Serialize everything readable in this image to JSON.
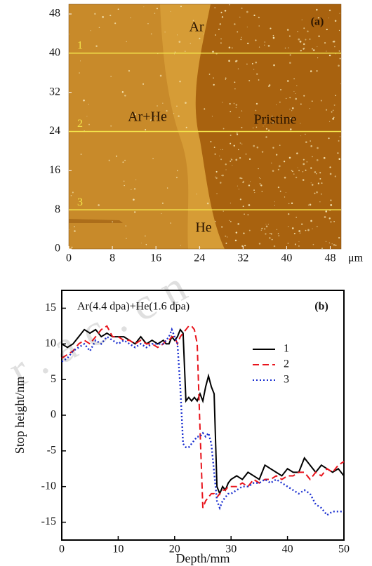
{
  "chart_data": [
    {
      "type": "image",
      "title": "(a)",
      "xlim": [
        0,
        50
      ],
      "ylim": [
        0,
        50
      ],
      "xticks": [
        0,
        8,
        16,
        24,
        32,
        40,
        48
      ],
      "yticks": [
        0,
        8,
        16,
        24,
        32,
        40,
        48
      ],
      "x_unit": "μm",
      "regions": [
        "Ar",
        "Ar+He",
        "Pristine",
        "He"
      ],
      "profile_lines": [
        {
          "label": "1",
          "y": 40
        },
        {
          "label": "2",
          "y": 24
        },
        {
          "label": "3",
          "y": 8
        }
      ],
      "line_color": "#f2e24a"
    },
    {
      "type": "line",
      "title": "(b)",
      "annotation": "Ar(4.4 dpa)+He(1.6 dpa)",
      "xlabel": "Depth/mm",
      "ylabel": "Stop height/nm",
      "xlim": [
        0,
        50
      ],
      "ylim": [
        -17.5,
        17.5
      ],
      "xticks": [
        0,
        10,
        20,
        30,
        40,
        50
      ],
      "yticks": [
        -15,
        -10,
        -5,
        0,
        5,
        10,
        15
      ],
      "x": [
        0,
        1,
        2,
        3,
        4,
        5,
        6,
        7,
        8,
        9,
        10,
        11,
        12,
        13,
        14,
        15,
        16,
        17,
        18,
        18.5,
        19,
        19.5,
        20,
        20.5,
        21,
        21.5,
        22,
        22.5,
        23,
        23.5,
        24,
        24.5,
        25,
        25.5,
        26,
        26.5,
        27,
        27.5,
        28,
        28.5,
        29,
        29.5,
        30,
        31,
        32,
        33,
        34,
        35,
        36,
        37,
        38,
        39,
        40,
        41,
        42,
        43,
        44,
        45,
        46,
        47,
        48,
        49,
        50
      ],
      "series": [
        {
          "name": "1",
          "color": "#000000",
          "dash": "solid",
          "values": [
            10,
            9.5,
            10,
            11,
            12,
            11.5,
            12,
            11,
            11.5,
            11,
            11,
            11,
            10.5,
            10,
            11,
            10,
            10.5,
            10,
            10.5,
            10,
            10,
            11,
            10.5,
            11,
            12,
            11.5,
            2,
            2.5,
            2,
            2.5,
            2,
            3,
            2,
            4,
            5.5,
            4,
            3,
            -10,
            -11,
            -10,
            -10.5,
            -9.5,
            -9,
            -8.5,
            -9,
            -8,
            -8.5,
            -9,
            -7,
            -7.5,
            -8,
            -8.5,
            -7.5,
            -8,
            -8,
            -6,
            -7,
            -8,
            -7,
            -7.5,
            -8,
            -7.5,
            -8.5
          ]
        },
        {
          "name": "2",
          "color": "#e8141c",
          "dash": "dashed",
          "values": [
            8,
            8.5,
            9,
            10,
            10.5,
            10,
            11,
            12,
            12.5,
            11,
            11,
            10.5,
            10.5,
            10,
            10.5,
            10,
            10,
            9.5,
            10,
            10.5,
            10.5,
            11,
            11,
            10,
            11,
            11.5,
            12,
            12.5,
            12.5,
            12,
            10,
            -2,
            -13,
            -12,
            -11.5,
            -11,
            -11,
            -11.5,
            -11,
            -10.5,
            -10.5,
            -10,
            -10,
            -10,
            -9.5,
            -10,
            -9,
            -9.5,
            -9,
            -9,
            -8.5,
            -9,
            -8.5,
            -8.5,
            -8,
            -8,
            -9,
            -8,
            -8.5,
            -7.5,
            -8,
            -7,
            -6.5
          ]
        },
        {
          "name": "3",
          "color": "#1a2fd0",
          "dash": "dotted",
          "values": [
            7.5,
            8,
            9,
            9.5,
            10,
            9,
            10.5,
            10,
            11,
            10.5,
            10,
            10.5,
            10,
            9.5,
            10,
            9.5,
            10,
            10,
            10,
            10.5,
            11,
            12,
            11,
            10,
            4,
            -4,
            -4.5,
            -4.5,
            -4,
            -3.5,
            -3,
            -3,
            -2.5,
            -3,
            -2.5,
            -4,
            -8,
            -12,
            -13,
            -12,
            -11.5,
            -11,
            -11,
            -10.5,
            -10,
            -10,
            -9.5,
            -9.5,
            -9,
            -9.5,
            -9,
            -9.5,
            -10,
            -10.5,
            -11,
            -10.5,
            -11,
            -12.5,
            -13,
            -14,
            -13.5,
            -13.5,
            -13.5
          ]
        }
      ]
    }
  ],
  "watermark": "r.ac.cn"
}
